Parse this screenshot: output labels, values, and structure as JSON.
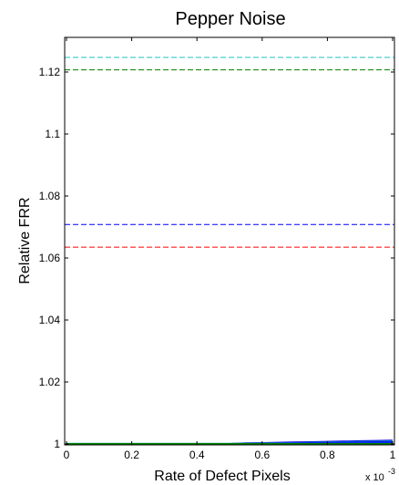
{
  "chart_data": {
    "type": "line",
    "title": "Pepper Noise",
    "xlabel": "Rate of Defect Pixels",
    "ylabel": "Relative FRR",
    "x_multiplier": "x 10",
    "x_multiplier_exp": "-3",
    "xlim": [
      0,
      1
    ],
    "ylim": [
      1,
      1.13
    ],
    "xticks": [
      0,
      0.2,
      0.4,
      0.6,
      0.8,
      1
    ],
    "xtick_labels": [
      "0",
      "0.2",
      "0.4",
      "0.6",
      "0.8",
      "1"
    ],
    "yticks": [
      1,
      1.02,
      1.04,
      1.06,
      1.08,
      1.1,
      1.12
    ],
    "ytick_labels": [
      "1",
      "1.02",
      "1.04",
      "1.06",
      "1.08",
      "1.1",
      "1.12"
    ],
    "grid": false,
    "reference_lines": [
      {
        "y": 1.1247,
        "color": "#20c0c0",
        "style": "dashed"
      },
      {
        "y": 1.1207,
        "color": "#008000",
        "style": "dashed"
      },
      {
        "y": 1.0708,
        "color": "#0000ff",
        "style": "dashed"
      },
      {
        "y": 1.0635,
        "color": "#ff0000",
        "style": "dashed"
      }
    ],
    "series": [
      {
        "color": "#0000e0",
        "x": [
          0,
          0.1,
          0.2,
          0.3,
          0.4,
          0.5,
          0.55,
          0.6,
          0.65,
          0.7,
          0.75,
          0.8,
          0.85,
          0.9,
          0.95,
          1.0
        ],
        "y": [
          1.0,
          1.0,
          1.0,
          1.0,
          1.0,
          1.0,
          1.0002,
          1.0003,
          1.0004,
          1.0005,
          1.0006,
          1.0007,
          1.0008,
          1.0009,
          1.001,
          1.0011
        ]
      },
      {
        "color": "#1070d0",
        "x": [
          0,
          0.1,
          0.2,
          0.3,
          0.4,
          0.5,
          0.55,
          0.6,
          0.65,
          0.7,
          0.75,
          0.8,
          0.85,
          0.9,
          0.95,
          1.0
        ],
        "y": [
          1.0,
          1.0,
          1.0,
          1.0,
          1.0,
          1.0,
          1.0001,
          1.0002,
          1.0003,
          1.0003,
          1.0004,
          1.0005,
          1.0006,
          1.0007,
          1.0008,
          1.0009
        ]
      },
      {
        "color": "#0000ff",
        "x": [
          0,
          0.1,
          0.2,
          0.3,
          0.4,
          0.5,
          0.55,
          0.6,
          0.65,
          0.7,
          0.75,
          0.8,
          0.85,
          0.9,
          0.95,
          1.0
        ],
        "y": [
          1.0,
          1.0,
          1.0,
          1.0,
          1.0,
          1.0,
          1.0001,
          1.0001,
          1.0002,
          1.0002,
          1.0003,
          1.0003,
          1.0004,
          1.0004,
          1.0005,
          1.0005
        ]
      },
      {
        "color": "#20b0b0",
        "x": [
          0,
          0.2,
          0.4,
          0.6,
          0.8,
          1.0
        ],
        "y": [
          1.0001,
          1.0001,
          1.0001,
          1.0001,
          1.0001,
          1.0001
        ]
      },
      {
        "color": "#008000",
        "x": [
          0,
          0.2,
          0.4,
          0.6,
          0.8,
          1.0
        ],
        "y": [
          1.0,
          1.0,
          1.0,
          1.0,
          1.0,
          1.0
        ]
      }
    ]
  }
}
